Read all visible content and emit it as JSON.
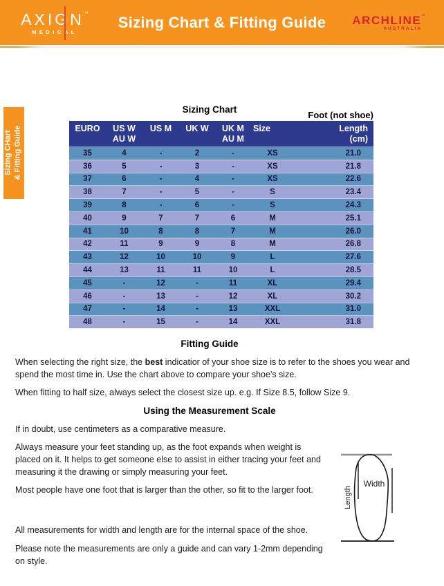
{
  "colors": {
    "accent_orange": "#F6921E",
    "brand_red": "#E8432D",
    "archline_red": "#D7252B",
    "table_header_navy": "#2D3A8E",
    "row_teal": "#5C92BE",
    "row_periwinkle": "#9FA6D6",
    "row_text_navy": "#14143F"
  },
  "header": {
    "brand_word": "AXIGN",
    "brand_tm": "™",
    "brand_sub": "MEDICAL",
    "title": "Sizing Chart & Fitting Guide",
    "partner_word": "ARCHLINE",
    "partner_tm": "™",
    "partner_sub": "AUSTRALIA"
  },
  "side_tab": {
    "line1": "Sizing CHart",
    "line2": "& Fitting Guide"
  },
  "sizing_chart": {
    "title": "Sizing Chart",
    "annotation": "Foot (not shoe)",
    "columns": [
      {
        "line1": "EURO",
        "line2": ""
      },
      {
        "line1": "US W",
        "line2": "AU W"
      },
      {
        "line1": "US M",
        "line2": ""
      },
      {
        "line1": "UK W",
        "line2": ""
      },
      {
        "line1": "UK M",
        "line2": "AU M"
      },
      {
        "line1": "Size",
        "line2": ""
      },
      {
        "line1": "Length",
        "line2": "(cm)"
      }
    ],
    "rows": [
      [
        "35",
        "4",
        "-",
        "2",
        "-",
        "XS",
        "21.0"
      ],
      [
        "36",
        "5",
        "-",
        "3",
        "-",
        "XS",
        "21.8"
      ],
      [
        "37",
        "6",
        "-",
        "4",
        "-",
        "XS",
        "22.6"
      ],
      [
        "38",
        "7",
        "-",
        "5",
        "-",
        "S",
        "23.4"
      ],
      [
        "39",
        "8",
        "-",
        "6",
        "-",
        "S",
        "24.3"
      ],
      [
        "40",
        "9",
        "7",
        "7",
        "6",
        "M",
        "25.1"
      ],
      [
        "41",
        "10",
        "8",
        "8",
        "7",
        "M",
        "26.0"
      ],
      [
        "42",
        "11",
        "9",
        "9",
        "8",
        "M",
        "26.8"
      ],
      [
        "43",
        "12",
        "10",
        "10",
        "9",
        "L",
        "27.6"
      ],
      [
        "44",
        "13",
        "11",
        "11",
        "10",
        "L",
        "28.5"
      ],
      [
        "45",
        "-",
        "12",
        "-",
        "11",
        "XL",
        "29.4"
      ],
      [
        "46",
        "-",
        "13",
        "-",
        "12",
        "XL",
        "30.2"
      ],
      [
        "47",
        "-",
        "14",
        "-",
        "13",
        "XXL",
        "31.0"
      ],
      [
        "48",
        "-",
        "15",
        "-",
        "14",
        "XXL",
        "31.8"
      ]
    ]
  },
  "fitting_guide": {
    "heading": "Fitting Guide",
    "p1_before_bold": "When selecting the right size, the ",
    "p1_bold": "best",
    "p1_after_bold": " indicatior of your shoe size is to refer to the shoes you wear and spend the most time in. Use the chart above to compare your shoe's size.",
    "p2": "When fitting to half size, always select the closest size up. e.g. If Size 8.5, follow Size 9."
  },
  "measurement_scale": {
    "heading": "Using the Measurement Scale",
    "p1": "If in doubt, use centimeters as a comparative measure.",
    "p2": "Always measure your feet standing up, as the foot expands when weight is placed on it. It helps to get someone else to assist in either tracing your feet and measuring it the drawing or simply measuring your feet.",
    "p3": "Most people have one foot that is larger than the other, so fit to the larger foot.",
    "p4": "All measurements for width and length are for the internal space of the shoe.",
    "p5": "Please note the measurements are only a guide and can vary 1-2mm depending on style."
  },
  "diagram": {
    "length_label": "Length",
    "width_label": "Width"
  }
}
